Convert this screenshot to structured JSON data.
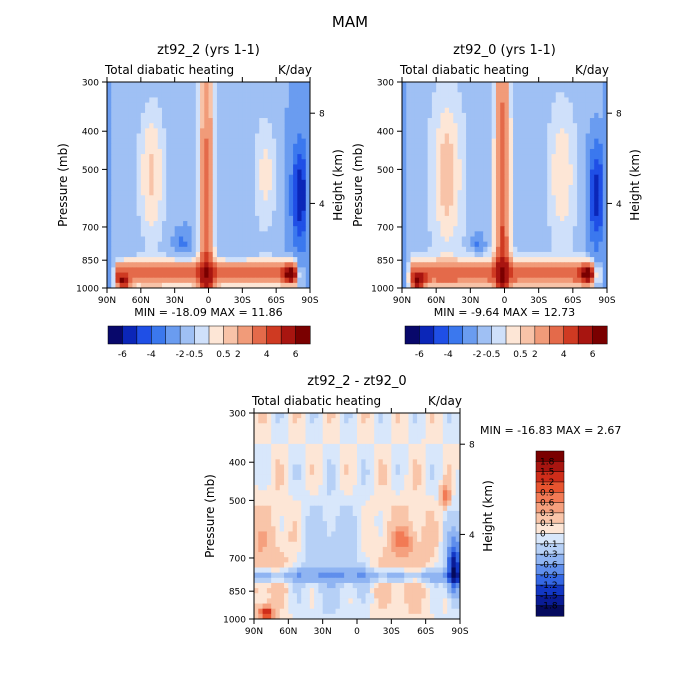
{
  "figure_title": "MAM",
  "chart_data": [
    {
      "type": "heatmap",
      "panel": "top-left",
      "title": "zt92_2 (yrs 1-1)",
      "subtitle_left": "Total diabatic heating",
      "subtitle_right": "K/day",
      "ylabel": "Pressure (mb)",
      "ylabel_right": "Height (km)",
      "x_ticks": [
        "90N",
        "60N",
        "30N",
        "0",
        "30S",
        "60S",
        "90S"
      ],
      "y_ticks": [
        "300",
        "400",
        "500",
        "700",
        "850",
        "1000"
      ],
      "right_ticks": [
        "8",
        "4"
      ],
      "stats": "MIN = -18.09   MAX =  11.86",
      "colorbar_labels": [
        "-6",
        "-4",
        "-2",
        "-0.5",
        "0.5",
        "2",
        "4",
        "6"
      ],
      "colorbar_orientation": "horizontal"
    },
    {
      "type": "heatmap",
      "panel": "top-right",
      "title": "zt92_0 (yrs 1-1)",
      "subtitle_left": "Total diabatic heating",
      "subtitle_right": "K/day",
      "ylabel": "Pressure (mb)",
      "ylabel_right": "Height (km)",
      "x_ticks": [
        "90N",
        "60N",
        "30N",
        "0",
        "30S",
        "60S",
        "90S"
      ],
      "y_ticks": [
        "300",
        "400",
        "500",
        "700",
        "850",
        "1000"
      ],
      "right_ticks": [
        "8",
        "4"
      ],
      "stats": "MIN =  -9.64   MAX =  12.73",
      "colorbar_labels": [
        "-6",
        "-4",
        "-2",
        "-0.5",
        "0.5",
        "2",
        "4",
        "6"
      ],
      "colorbar_orientation": "horizontal"
    },
    {
      "type": "heatmap",
      "panel": "bottom",
      "title": "zt92_2 - zt92_0",
      "subtitle_left": "Total diabatic heating",
      "subtitle_right": "K/day",
      "ylabel": "Pressure (mb)",
      "ylabel_right": "Height (km)",
      "x_ticks": [
        "90N",
        "60N",
        "30N",
        "0",
        "30S",
        "60S",
        "90S"
      ],
      "y_ticks": [
        "300",
        "400",
        "500",
        "700",
        "850",
        "1000"
      ],
      "right_ticks": [
        "8",
        "4"
      ],
      "stats": "MIN = -16.83   MAX =   2.67",
      "colorbar_labels": [
        "1.8",
        "1.5",
        "1.2",
        "0.9",
        "0.6",
        "0.3",
        "0.1",
        "0",
        "-0.1",
        "-0.3",
        "-0.6",
        "-0.9",
        "-1.2",
        "-1.5",
        "-1.8"
      ],
      "colorbar_orientation": "vertical"
    }
  ],
  "palette": {
    "horizontal": [
      "#08086b",
      "#0b26b8",
      "#1f4fe6",
      "#3b78ee",
      "#6a9cf0",
      "#9fc0f4",
      "#cfe0fa",
      "#fde6d6",
      "#f8c3a8",
      "#f19b79",
      "#e46a4a",
      "#cf3a22",
      "#a81510",
      "#7a0000"
    ],
    "vertical": [
      "#7a0000",
      "#a81510",
      "#cf2d1a",
      "#e8542f",
      "#f27a55",
      "#f5a07e",
      "#f9c5a9",
      "#fde6d6",
      "#d8e7fb",
      "#b6d0f6",
      "#8fb4f2",
      "#5f8eec",
      "#3467e4",
      "#1237c4",
      "#0a1c96",
      "#050a5e"
    ]
  }
}
